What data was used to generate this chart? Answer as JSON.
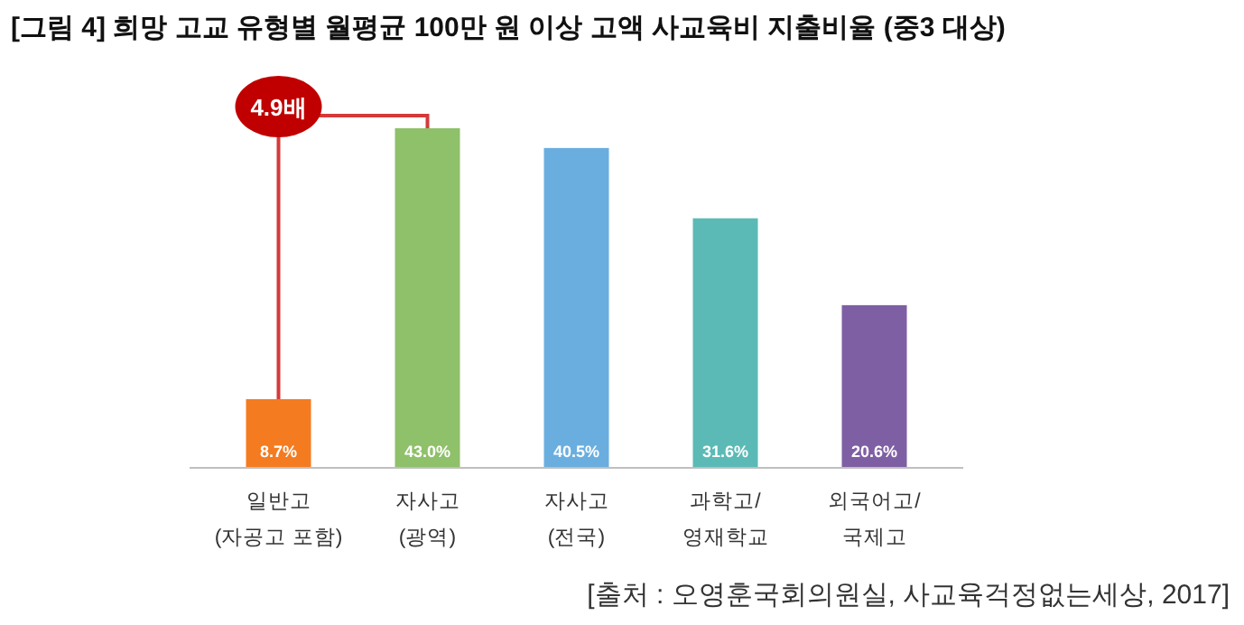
{
  "chart_data": {
    "type": "bar",
    "title": "[그림 4] 희망 고교 유형별 월평균 100만 원 이상 고액 사교육비 지출비율 (중3 대상)",
    "categories": [
      "일반고\n(자공고 포함)",
      "자사고\n(광역)",
      "자사고\n(전국)",
      "과학고/\n영재학교",
      "외국어고/\n국제고"
    ],
    "values": [
      8.7,
      43.0,
      40.5,
      31.6,
      20.6
    ],
    "colors": [
      "#f47b20",
      "#8fc06a",
      "#6aaee0",
      "#5bbab5",
      "#7f5fa3"
    ],
    "value_labels": [
      "8.7%",
      "43.0%",
      "40.5%",
      "31.6%",
      "20.6%"
    ],
    "relative": false,
    "annotations": [
      "4.9배",
      "[출처 : 오영훈국회의원실, 사교육걱정없는세상, 2017]"
    ]
  }
}
